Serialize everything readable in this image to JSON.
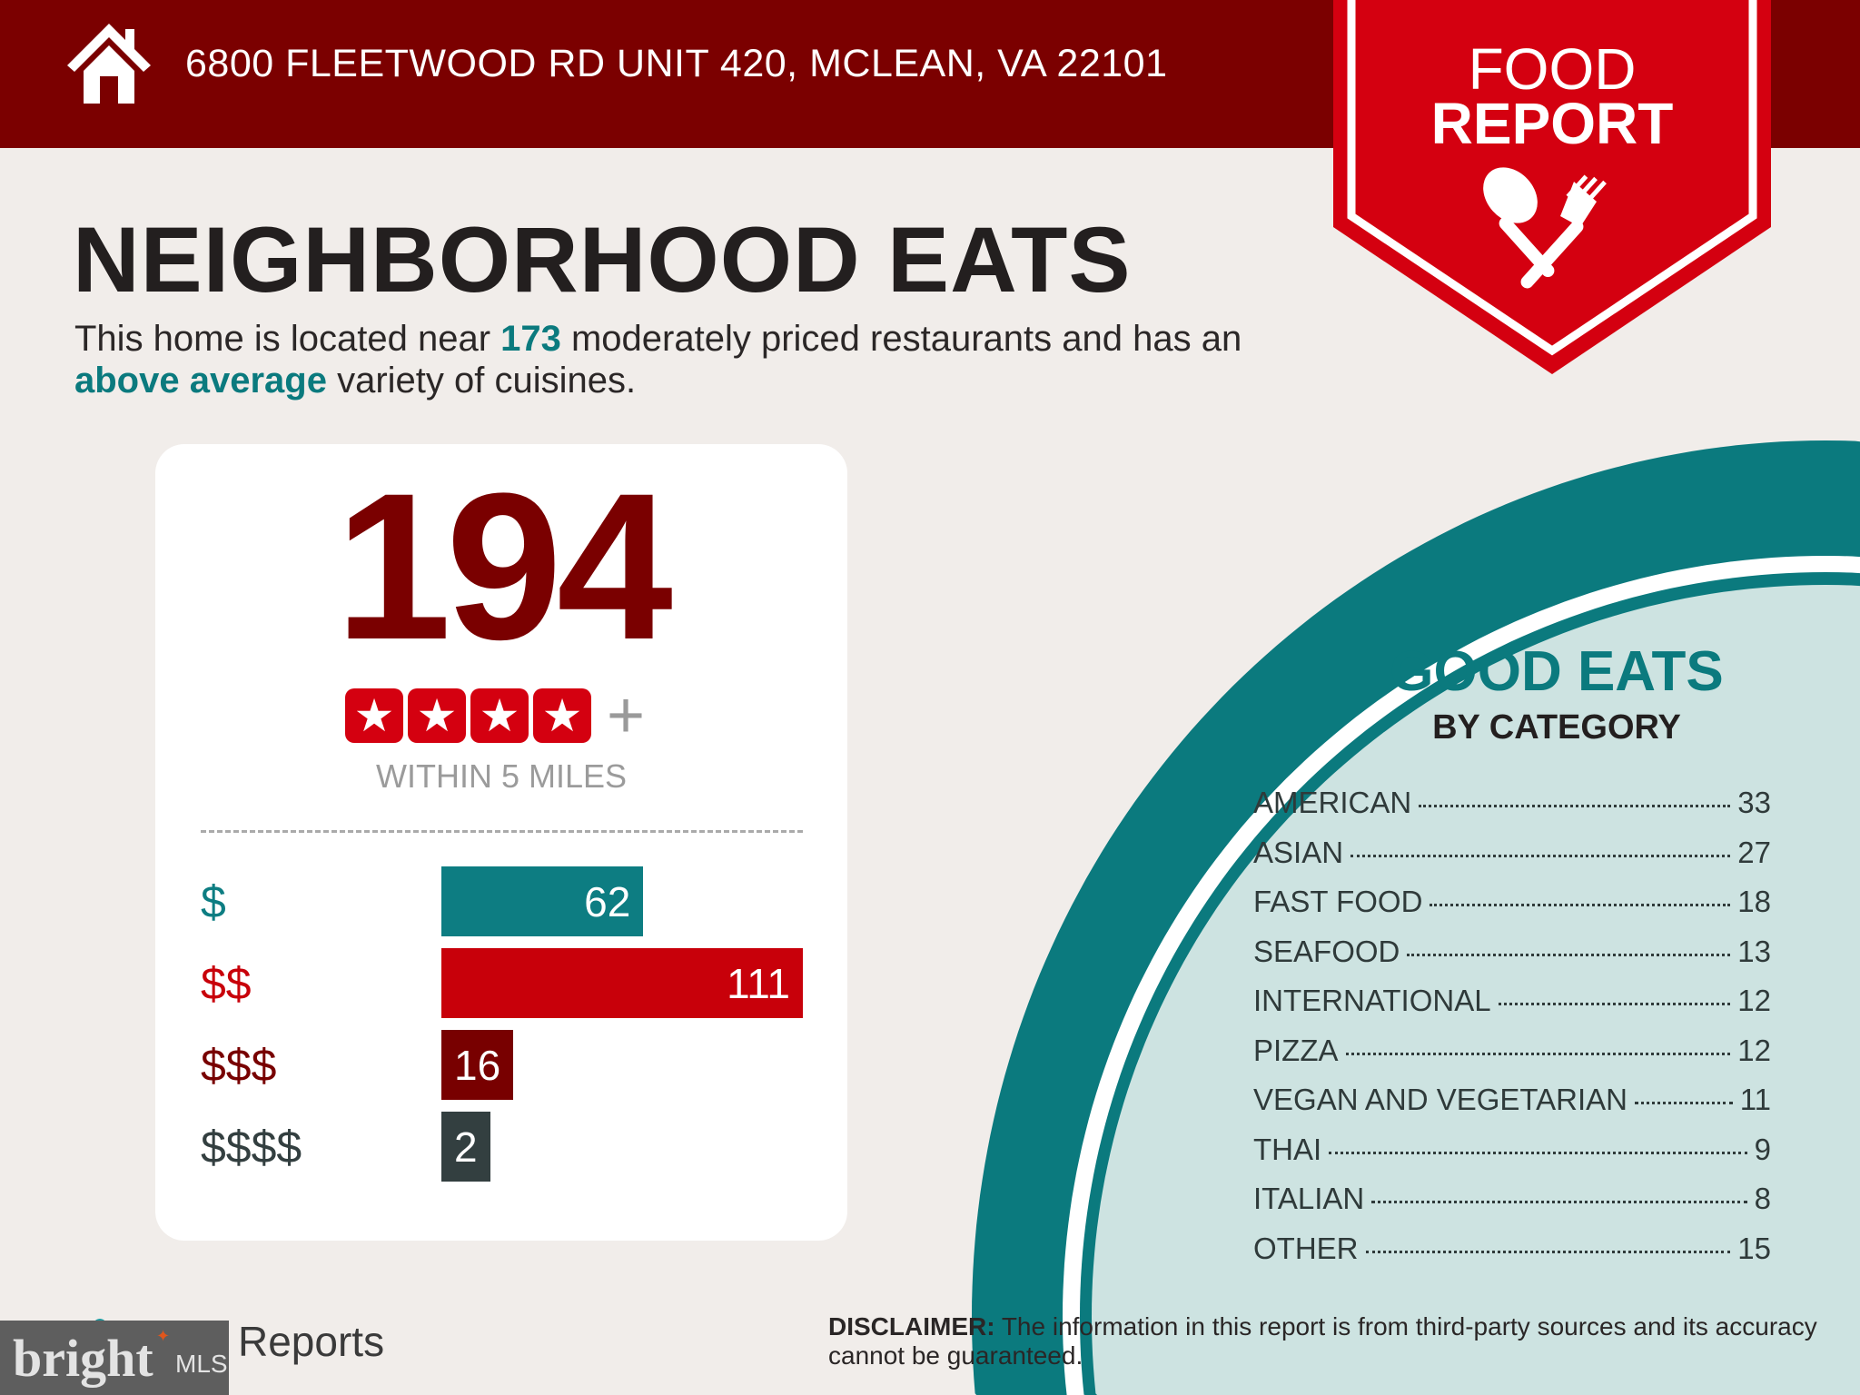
{
  "header": {
    "address": "6800 FLEETWOOD RD UNIT 420, MCLEAN, VA 22101",
    "icon": "house-icon"
  },
  "badge": {
    "line1": "FOOD",
    "line2": "REPORT",
    "icon": "spoon-fork-icon"
  },
  "title": "NEIGHBORHOOD EATS",
  "intro": {
    "p1": "This home is located near ",
    "count": "173",
    "p2": " moderately priced restaurants and has an ",
    "variety": "above average",
    "p3": " variety of cuisines."
  },
  "summary": {
    "total": "194",
    "stars": 4,
    "plus": "+",
    "within": "WITHIN 5 MILES"
  },
  "price_bars": [
    {
      "label": "$",
      "value": 62,
      "color": "#0d7d82"
    },
    {
      "label": "$$",
      "value": 111,
      "color": "#c8000a"
    },
    {
      "label": "$$$",
      "value": 16,
      "color": "#780000"
    },
    {
      "label": "$$$$",
      "value": 2,
      "color": "#333f40"
    }
  ],
  "good_eats": {
    "title": "GOOD EATS",
    "subtitle": "BY CATEGORY",
    "categories": [
      {
        "name": "AMERICAN",
        "count": "33"
      },
      {
        "name": "ASIAN",
        "count": "27"
      },
      {
        "name": "FAST FOOD",
        "count": "18"
      },
      {
        "name": "SEAFOOD",
        "count": "13"
      },
      {
        "name": "INTERNATIONAL",
        "count": "12"
      },
      {
        "name": "PIZZA",
        "count": "12"
      },
      {
        "name": "VEGAN AND VEGETARIAN",
        "count": "11"
      },
      {
        "name": "THAI",
        "count": "9"
      },
      {
        "name": "ITALIAN",
        "count": "8"
      },
      {
        "name": "OTHER",
        "count": "15"
      }
    ]
  },
  "footer": {
    "reports_text": "Reports",
    "disclaimer_label": "DISCLAIMER:",
    "disclaimer": " The information in this report is from third-party sources and its accuracy cannot be guaranteed.",
    "watermark": "bright MLS"
  },
  "colors": {
    "header": "#7b0000",
    "badge": "#d40010",
    "teal": "#0b7a7e",
    "circle_fill": "#cde3e1",
    "background": "#f1edea"
  }
}
